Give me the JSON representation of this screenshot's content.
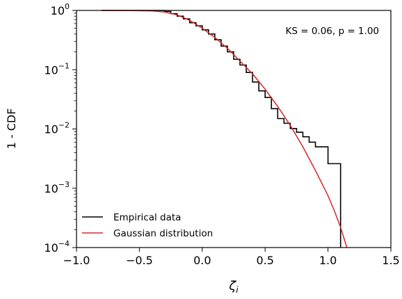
{
  "chart_data": {
    "type": "line",
    "title": "",
    "xlabel": "ζ",
    "xlabel_sub": "i",
    "ylabel": "1 - CDF",
    "xlim": [
      -1.0,
      1.5
    ],
    "ylim": [
      0.0001,
      1
    ],
    "yscale": "log",
    "grid": false,
    "legend_position": "bottom-left",
    "x_ticks": [
      {
        "value": -1.0,
        "label": "−1.0"
      },
      {
        "value": -0.5,
        "label": "−0.5"
      },
      {
        "value": 0.0,
        "label": "0.0"
      },
      {
        "value": 0.5,
        "label": "0.5"
      },
      {
        "value": 1.0,
        "label": "1.0"
      },
      {
        "value": 1.5,
        "label": "1.5"
      }
    ],
    "y_ticks": [
      {
        "value": 1,
        "base": "10",
        "exp": "0"
      },
      {
        "value": 0.1,
        "base": "10",
        "exp": "−1"
      },
      {
        "value": 0.01,
        "base": "10",
        "exp": "−2"
      },
      {
        "value": 0.001,
        "base": "10",
        "exp": "−3"
      },
      {
        "value": 0.0001,
        "base": "10",
        "exp": "−4"
      }
    ],
    "annotation": "KS = 0.06, p = 1.00",
    "series": [
      {
        "name": "Empirical data",
        "kind": "step",
        "color": "#000000",
        "x": [
          -0.8,
          -0.3,
          -0.25,
          -0.2,
          -0.15,
          -0.1,
          -0.05,
          0.0,
          0.05,
          0.1,
          0.15,
          0.2,
          0.25,
          0.3,
          0.35,
          0.4,
          0.45,
          0.5,
          0.55,
          0.6,
          0.65,
          0.7,
          0.75,
          0.8,
          0.85,
          0.9,
          1.0,
          1.1,
          1.1
        ],
        "y": [
          1.0,
          0.96,
          0.88,
          0.8,
          0.72,
          0.62,
          0.55,
          0.47,
          0.4,
          0.32,
          0.25,
          0.2,
          0.15,
          0.12,
          0.09,
          0.062,
          0.044,
          0.034,
          0.022,
          0.015,
          0.0125,
          0.0102,
          0.0088,
          0.0074,
          0.006,
          0.005,
          0.0026,
          0.0013,
          0.0001
        ]
      },
      {
        "name": "Gaussian distribution",
        "kind": "line",
        "color": "#d62728",
        "x": [
          -0.8,
          -0.6,
          -0.4,
          -0.3,
          -0.2,
          -0.1,
          0.0,
          0.1,
          0.2,
          0.3,
          0.4,
          0.5,
          0.6,
          0.7,
          0.8,
          0.9,
          1.0,
          1.05,
          1.1,
          1.15
        ],
        "y": [
          1.0,
          0.998,
          0.98,
          0.94,
          0.84,
          0.68,
          0.5,
          0.35,
          0.23,
          0.14,
          0.085,
          0.047,
          0.024,
          0.0115,
          0.005,
          0.002,
          0.00075,
          0.00042,
          0.00022,
          0.0001
        ]
      }
    ]
  }
}
